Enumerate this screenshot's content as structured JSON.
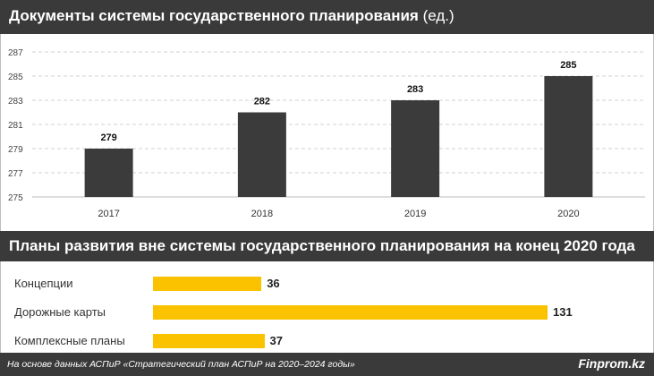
{
  "header": {
    "title": "Документы системы государственного планирования",
    "unit": "(ед.)"
  },
  "section2": {
    "title": "Планы развития вне системы государственного планирования на конец 2020 года"
  },
  "footer": {
    "source": "На основе данных АСПиР «Стратегический план АСПиР на 2020–2024 годы»",
    "brand": "Finprom.kz"
  },
  "colors": {
    "dark": "#3a3a3a",
    "bar": "#3b3b3b",
    "accent": "#fbc200"
  },
  "chart_data": [
    {
      "type": "bar",
      "categories": [
        "2017",
        "2018",
        "2019",
        "2020"
      ],
      "values": [
        279,
        282,
        283,
        285
      ],
      "ylim": [
        275,
        287
      ],
      "yticks": [
        275,
        277,
        279,
        281,
        283,
        285,
        287
      ],
      "grid": true
    },
    {
      "type": "bar",
      "orientation": "horizontal",
      "categories": [
        "Концепции",
        "Дорожные карты",
        "Комплексные планы"
      ],
      "values": [
        36,
        131,
        37
      ],
      "xlim": [
        0,
        131
      ]
    }
  ]
}
